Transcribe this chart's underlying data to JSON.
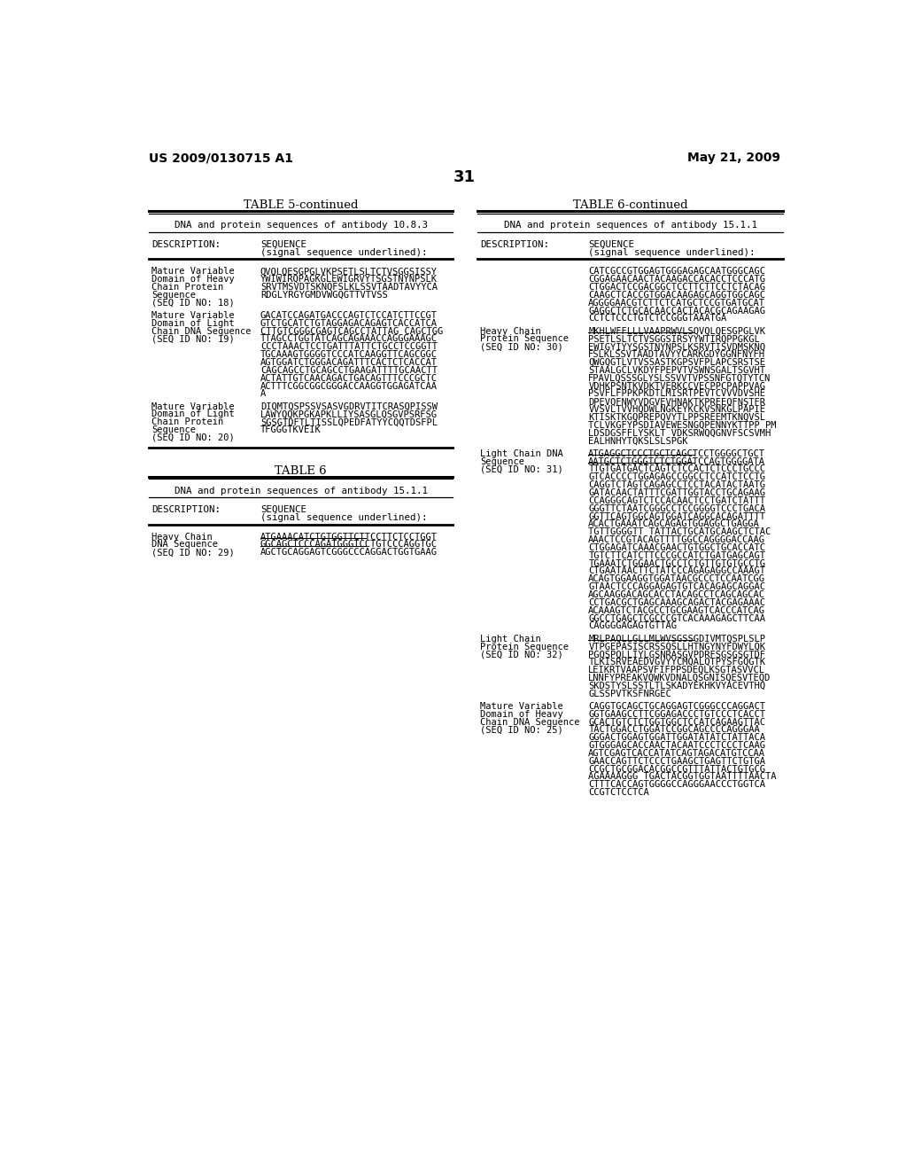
{
  "page_number": "31",
  "header_left": "US 2009/0130715 A1",
  "header_right": "May 21, 2009",
  "background_color": "#ffffff",
  "t5_title": "TABLE 5-continued",
  "t5_subtitle": "DNA and protein sequences of antibody 10.8.3",
  "t6cont_title": "TABLE 6-continued",
  "t6cont_subtitle": "DNA and protein sequences of antibody 15.1.1",
  "t6_title": "TABLE 6",
  "t6_subtitle": "DNA and protein sequences of antibody 15.1.1",
  "left_entries": [
    {
      "label": [
        "Mature Variable",
        "Domain of Heavy",
        "Chain Protein",
        "Sequence",
        "(SEQ ID NO: 18)"
      ],
      "seq": [
        "QVQLQESGPGLVKPSETLSLTCTVSGGSISSY",
        "YWIWIRQPAGKGLEWIGRVYTSGSTNYNPSLK",
        "SRVTMSVDTSKNQFSLKLSSVTAADTAVYYCA",
        "RDGLYRGYGMDVWGQGTTVTVSS"
      ]
    },
    {
      "label": [
        "Mature Variable",
        "Domain of Light",
        "Chain DNA Sequence",
        "(SEQ ID NO: 19)"
      ],
      "seq": [
        "GACATCCAGATGACCCAGTCTCCATCTTCCGT",
        "GTCTGCATCTGTAGGAGACAGAGTCACCATCA",
        "CTTGTCGGGCGAGTCAGCCTATTAG CAGCTGG",
        "TTAGCCTGGTATCAGCAGAAACCAGGGAAAGC",
        "CCCTAAACTCCTGATTTATTCTGCCTCCGGTT",
        "TGCAAAGTGGGGTCCCATCAAGGTTCAGCGGC",
        "AGTGGATCTGGGACAGATTTCACTCTCACCAT",
        "CAGCAGCCTGCAGCCTGAAGATTTTGCAACTT",
        "ACTATTGTCAACAGACTGACAGTTTCCCGCTC",
        "ACTTTCGGCGGCGGGACCAAGGTGGAGATCAA",
        "A"
      ]
    },
    {
      "label": [
        "Mature Variable",
        "Domain of Light",
        "Chain Protein",
        "Sequence",
        "(SEQ ID NO: 20)"
      ],
      "seq": [
        "DIQMTQSPSSVSASVGDRVTITCRASQPISSW",
        "LAWYQQKPGKAPKLLIYSASGLQSGVPSRFSG",
        "SGSGTDFTLTISSLQPEDFATYYCQQTDSFPL",
        "TFGGGTKVEIK"
      ]
    }
  ],
  "t6_left_entries": [
    {
      "label": [
        "Heavy Chain",
        "DNA Sequence",
        "(SEQ ID NO: 29)"
      ],
      "seq_underlined": 2,
      "seq": [
        "ATGAAACATCTGTGGTTCTTCCTTCTCCTGGT",
        "GGCAGCTCCCAGATGGGTCCTGTCCCAGGTGC",
        "AGCTGCAGGAGTCGGGCCCAGGACTGGTGAAG"
      ]
    }
  ],
  "right_top_seq": [
    "CATCGCCGTGGAGTGGGAGAGCAATGGGCAGC",
    "CGGAGAACAACTACAAGACCACACCTCCCATG",
    "CTGGACTCCGACGGCTCCTTCTTCCTCTACAG",
    "CAAGCTCACCGTGGACAAGAGCAGGTGGCAGC",
    "AGGGGAACGTCTTCTCATGCTCCGTGATGCAT",
    "GAGGCTCTGCACAACCACTACACGCAGAAGAG",
    "CCTCTCCCTGTCTCCGGGTAAATGA"
  ],
  "right_entries": [
    {
      "label": [
        "Heavy Chain",
        "Protein Sequence",
        "(SEQ ID NO: 30)"
      ],
      "seq_underlined": 1,
      "seq": [
        "MKHLWFFLLLVAAPRWVLSQVQLQESGPGLVK",
        "PSETLSLTCTVSGGSIRSYYWTIRQPPGKGL",
        "EWIGYIYYSGSTNYNPSLKSRVTISVDMSKNQ",
        "FSLKLSSVTAADTAVYYCARKGDYGGNFNYFH",
        "QWGQGTLVTVSSASTKGPSVFPLAPCSRSTSE",
        "STAALGCLVKDYFPEPVTVSWNSGALTSGVHT",
        "FPAVLQSSSGLYSLSSVVTVPSSNFGTQTYTCN",
        "VDHKPSNTKVDKTVERKCCVECPPCPAPPVAG",
        "PSVFLFPPKPKDTLMISRTPEVTCVVVDVSHE",
        "DPEVQFNWYVDGVEVHNAKTKPREEQFNSTFR",
        "VVSVLTVVHQDWLNGKEYKCKVSNKGLPAPIE",
        "KTISKTKGQPREPQVYTLPPSREEMTKNQVSL",
        "TCLVKGFYPSDIAVEWESNGQPENNYKTTPP PM",
        "LDSDGSFFLYSKLT VDKSRWQQGNVFSCSVMH",
        "EALHNHYTQKSLSLSPGK"
      ]
    },
    {
      "label": [
        "Light Chain DNA",
        "Sequence",
        "(SEQ ID NO: 31)"
      ],
      "seq_underlined": 2,
      "seq": [
        "ATGAGGCTCCCTGCTCAGCTCCTGGGGCTGCT",
        "AATGCTCTGGGTCTCTGGATCCAGTGGGGATA",
        "TTGTGATGACTCAGTCTCCACTCTCCCTGCCC",
        "GTCACCCCTGGAGAGCCGGCCTCCATCTCCTG",
        "CAGGTCTAGTCAGAGCCTCCTACATACTAATG",
        "GATACAACTATTTCGATTGGTACCTGCAGAAG",
        "CCAGGGCAGTCTCCACAACTCCTGATCTATTT",
        "GGGTTCTAATCGGGCCTCCGGGGTCCCTGACA",
        "GGTTCAGTGGCAGTGGATCAGGCACAGATTTT",
        "ACACTGAAATCAGCAGAGTGGAGGCTGAGGA",
        "TGTTGGGGTT TATTACTGCATGCAAGCTCTAC",
        "AAACTCCGTACAGTTTTGGCCAGGGGACCAAG",
        "CTGGAGATCAAACGAACTGTGGCTGCACCATC",
        "TGTCTTCATCTTCCCGCCATCTGATGAGCAGT",
        "TGAAATCTGGAACTGCCTCTGTTGTGTGCCTG",
        "CTGAATAACTTCTATCCCAGAGAGGCCAAAGT",
        "ACAGTGGAAGGTGGATAACGCCCTCCAATCGG",
        "GTAACTCCCAGGAGAGTGTCACAGAGCAGGAC",
        "AGCAAGGACAGCACCTACAGCCTCAGCAGCAC",
        "CCTGACGCTGAGCAAAGCAGACTACGAGAAAC",
        "ACAAAGTCTACGCCTGCGAAGTCACCCATCAG",
        "GGCCTGAGCTCGCCCGTCACAAAGAGCTTCAA",
        "CAGGGGAGAGTGTTAG"
      ]
    },
    {
      "label": [
        "Light Chain",
        "Protein Sequence",
        "(SEQ ID NO: 32)"
      ],
      "seq_underlined": 1,
      "seq": [
        "MRLPAQLLGLLMLWVSGSSGDIVMTQSPLSLP",
        "VTPGEPASISCRSSQSLLHTNGYNYFDWYLQK",
        "PGQSPQLLIYLGSNRASGVPDRFSGSGSGTDF",
        "TLKISRVEAEDVGVYYCMQALQTPYSFGQGTK",
        "LEIKRTVAAPSVFIFPPSDEQLKSGTASVVCL",
        "LNNFYPREAKVQWKVDNALQSGNISQESVTEQD",
        "SKDSTYSLSSTLTLSKADYEKHKVYACEVTHQ",
        "GLSSPVTKSFNRGEC"
      ]
    },
    {
      "label": [
        "Mature Variable",
        "Domain of Heavy",
        "Chain DNA Sequence",
        "(SEQ ID NO: 25)"
      ],
      "seq_underlined": 0,
      "seq": [
        "CAGGTGCAGCTGCAGGAGTCGGGCCCAGGACT",
        "GGTGAAGCCTTCGGAGACCCTGTCCCTCACCT",
        "GCACTGTCTCTGGTGGCTCCATCAGAAGTTAC",
        "TACTGGACCTGGATCCGGCAGCCCCAGGGAA",
        "GGGACTGGAGTGGATTGGATATATCTATTACA",
        "GTGGGAGCACCAACTACAATCCCTCCCTCAAG",
        "AGTCGAGTCACCATATCAGTAGACATGTCCAA",
        "GAACCAGTTCTCCCTGAAGCTGAGTTCTGTGA",
        "CCGCTGCGGACACGGCCGTTTATTACTGTGCG",
        "AGAAAAGGG TGACTACGGTGGTAATTTTAACTA",
        "CTTTCACCAGTGGGGCCAGGGAACCCTGGTCA",
        "CCGTCTCCTCA"
      ]
    }
  ]
}
